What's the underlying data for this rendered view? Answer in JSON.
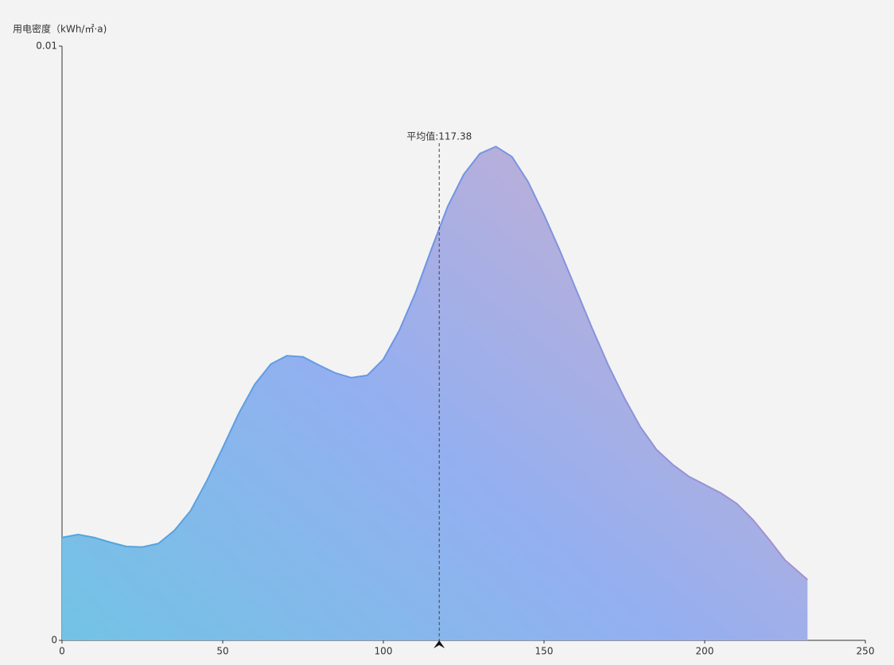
{
  "chart_data": {
    "type": "area",
    "y_axis_label": "用电密度（kWh/㎡·a)",
    "x": [
      0,
      5,
      10,
      15,
      20,
      25,
      30,
      35,
      40,
      45,
      50,
      55,
      60,
      65,
      70,
      75,
      80,
      85,
      90,
      95,
      100,
      105,
      110,
      115,
      120,
      125,
      130,
      135,
      140,
      145,
      150,
      155,
      160,
      165,
      170,
      175,
      180,
      185,
      190,
      195,
      200,
      205,
      210,
      215,
      220,
      225,
      232
    ],
    "values": [
      0.00173,
      0.00178,
      0.00173,
      0.00165,
      0.00158,
      0.00157,
      0.00163,
      0.00185,
      0.00218,
      0.00268,
      0.00324,
      0.00382,
      0.00431,
      0.00465,
      0.00479,
      0.00477,
      0.00463,
      0.0045,
      0.00442,
      0.00446,
      0.00473,
      0.00522,
      0.00585,
      0.00659,
      0.0073,
      0.00784,
      0.00819,
      0.00831,
      0.00814,
      0.00772,
      0.00716,
      0.00655,
      0.0059,
      0.00525,
      0.00463,
      0.00408,
      0.00359,
      0.00321,
      0.00296,
      0.00276,
      0.00262,
      0.00248,
      0.0023,
      0.00203,
      0.0017,
      0.00135,
      0.00102
    ],
    "colors": [
      "#72c3e5",
      "#94aff0",
      "#c6afd2"
    ],
    "line_colors": [
      "#4fa8dc",
      "#6f94e6",
      "#a592cc"
    ],
    "mean": {
      "value": 117.38,
      "label": "平均值:117.38"
    },
    "xlim": [
      0,
      250
    ],
    "xticks": [
      0,
      50,
      100,
      150,
      200,
      250
    ],
    "ylim": [
      0,
      0.01
    ],
    "yticks": [
      0,
      0.01
    ]
  }
}
